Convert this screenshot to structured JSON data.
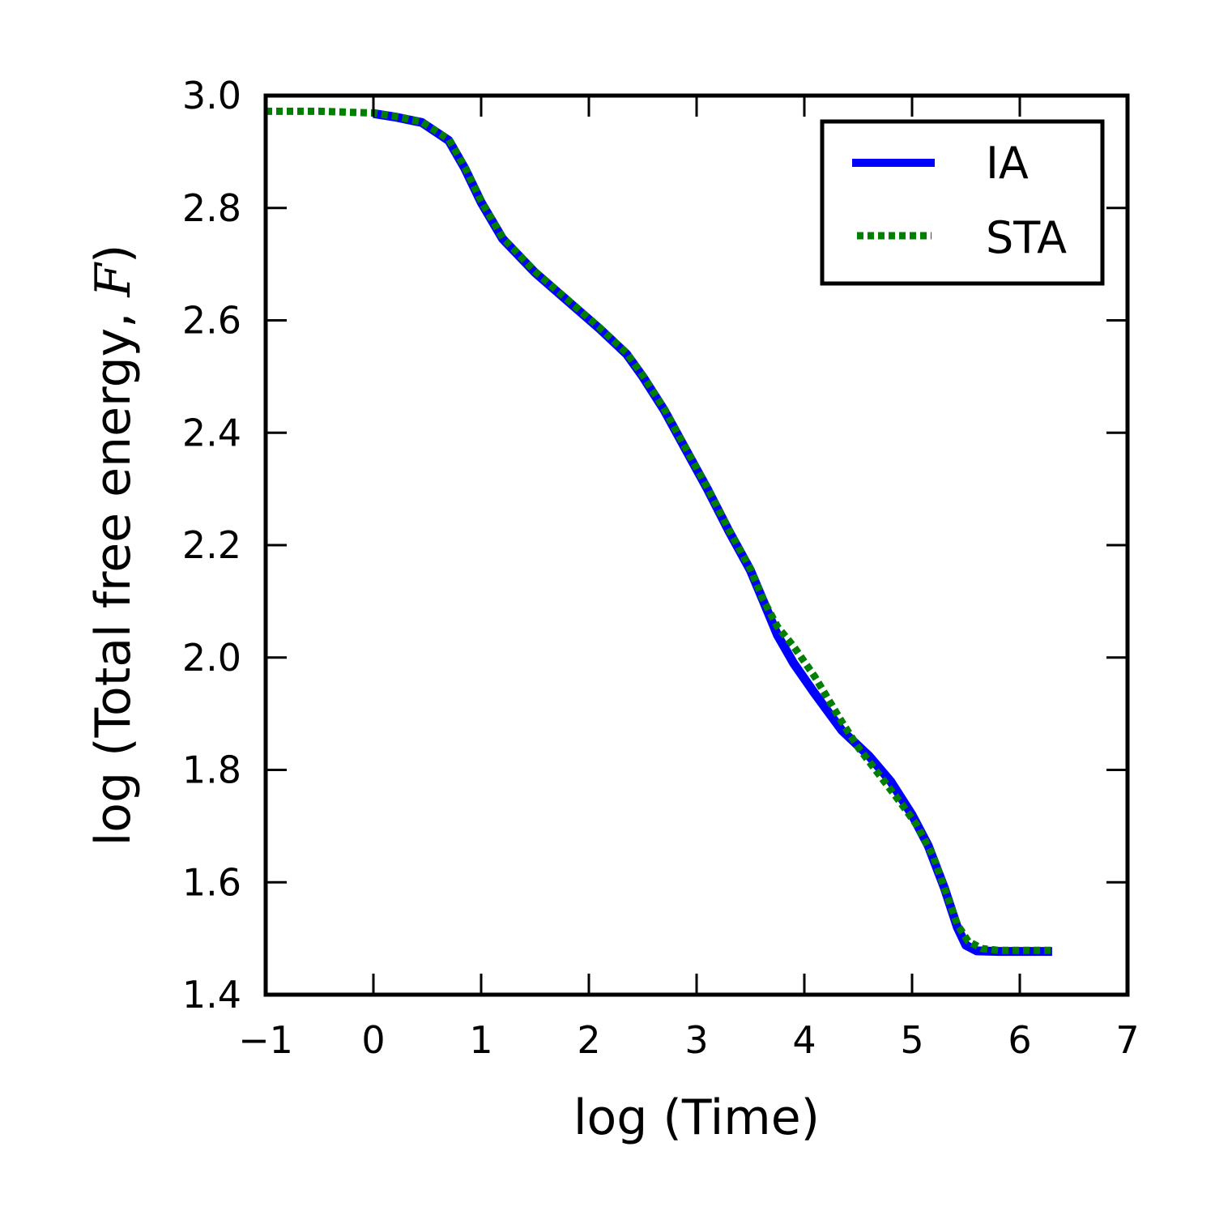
{
  "chart_data": {
    "type": "line",
    "xlabel": "log (Time)",
    "ylabel": {
      "prefix": "log (Total free energy, ",
      "variable": "F",
      "suffix": ")"
    },
    "xlim": [
      -1,
      7
    ],
    "ylim": [
      1.4,
      3.0
    ],
    "xticks": [
      -1,
      0,
      1,
      2,
      3,
      4,
      5,
      6,
      7
    ],
    "xtick_labels": [
      "−1",
      "0",
      "1",
      "2",
      "3",
      "4",
      "5",
      "6",
      "7"
    ],
    "yticks": [
      1.4,
      1.6,
      1.8,
      2.0,
      2.2,
      2.4,
      2.6,
      2.8,
      3.0
    ],
    "ytick_labels": [
      "1.4",
      "1.6",
      "1.8",
      "2.0",
      "2.2",
      "2.4",
      "2.6",
      "2.8",
      "3.0"
    ],
    "grid": false,
    "legend_position": "top-right",
    "series": [
      {
        "name": "IA",
        "color": "#0000ff",
        "style": "solid",
        "points": [
          [
            0.0,
            2.968
          ],
          [
            0.2,
            2.962
          ],
          [
            0.45,
            2.952
          ],
          [
            0.7,
            2.92
          ],
          [
            0.85,
            2.87
          ],
          [
            1.0,
            2.81
          ],
          [
            1.2,
            2.745
          ],
          [
            1.5,
            2.685
          ],
          [
            1.8,
            2.635
          ],
          [
            2.1,
            2.585
          ],
          [
            2.35,
            2.54
          ],
          [
            2.5,
            2.5
          ],
          [
            2.7,
            2.44
          ],
          [
            2.9,
            2.37
          ],
          [
            3.1,
            2.3
          ],
          [
            3.3,
            2.225
          ],
          [
            3.5,
            2.155
          ],
          [
            3.62,
            2.1
          ],
          [
            3.75,
            2.04
          ],
          [
            3.9,
            1.99
          ],
          [
            4.1,
            1.935
          ],
          [
            4.35,
            1.87
          ],
          [
            4.6,
            1.825
          ],
          [
            4.8,
            1.78
          ],
          [
            5.0,
            1.72
          ],
          [
            5.15,
            1.665
          ],
          [
            5.3,
            1.59
          ],
          [
            5.42,
            1.52
          ],
          [
            5.5,
            1.488
          ],
          [
            5.6,
            1.478
          ],
          [
            5.8,
            1.477
          ],
          [
            6.3,
            1.477
          ]
        ]
      },
      {
        "name": "STA",
        "color": "#007f00",
        "style": "dotted",
        "points": [
          [
            -1.0,
            2.972
          ],
          [
            -0.5,
            2.972
          ],
          [
            0.0,
            2.969
          ],
          [
            0.2,
            2.963
          ],
          [
            0.45,
            2.953
          ],
          [
            0.7,
            2.922
          ],
          [
            0.85,
            2.872
          ],
          [
            1.0,
            2.812
          ],
          [
            1.2,
            2.747
          ],
          [
            1.5,
            2.687
          ],
          [
            1.8,
            2.637
          ],
          [
            2.1,
            2.587
          ],
          [
            2.35,
            2.542
          ],
          [
            2.5,
            2.502
          ],
          [
            2.7,
            2.442
          ],
          [
            2.9,
            2.372
          ],
          [
            3.1,
            2.302
          ],
          [
            3.3,
            2.227
          ],
          [
            3.5,
            2.157
          ],
          [
            3.62,
            2.102
          ],
          [
            3.75,
            2.055
          ],
          [
            3.9,
            2.02
          ],
          [
            4.1,
            1.965
          ],
          [
            4.35,
            1.885
          ],
          [
            4.5,
            1.84
          ],
          [
            4.7,
            1.79
          ],
          [
            4.9,
            1.74
          ],
          [
            5.05,
            1.7
          ],
          [
            5.2,
            1.645
          ],
          [
            5.3,
            1.59
          ],
          [
            5.42,
            1.525
          ],
          [
            5.52,
            1.495
          ],
          [
            5.65,
            1.482
          ],
          [
            5.8,
            1.479
          ],
          [
            6.3,
            1.479
          ]
        ]
      }
    ]
  }
}
